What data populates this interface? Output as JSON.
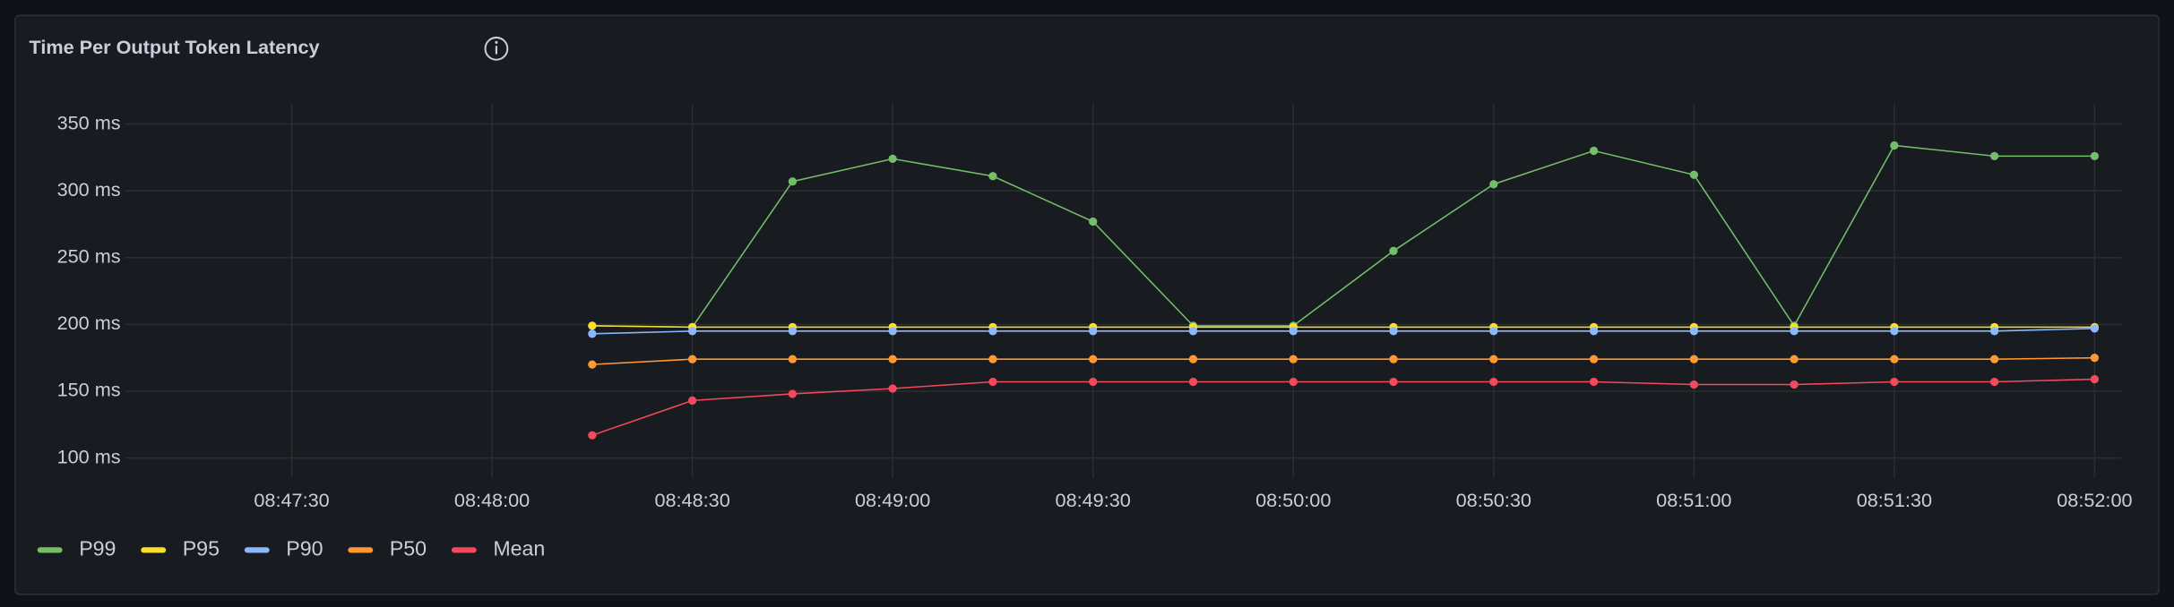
{
  "chart_data": {
    "type": "line",
    "title": "Time Per Output Token Latency",
    "x": [
      "08:48:15",
      "08:48:30",
      "08:48:45",
      "08:49:00",
      "08:49:15",
      "08:49:30",
      "08:49:45",
      "08:50:00",
      "08:50:15",
      "08:50:30",
      "08:50:45",
      "08:51:00",
      "08:51:15",
      "08:51:30",
      "08:51:45",
      "08:52:00"
    ],
    "xlim": [
      "08:47:05",
      "08:52:04"
    ],
    "xticks": [
      "08:47:30",
      "08:48:00",
      "08:48:30",
      "08:49:00",
      "08:49:30",
      "08:50:00",
      "08:50:30",
      "08:51:00",
      "08:51:30",
      "08:52:00"
    ],
    "ylim": [
      85,
      365
    ],
    "yticks": [
      {
        "value": 100,
        "label": "100 ms"
      },
      {
        "value": 150,
        "label": "150 ms"
      },
      {
        "value": 200,
        "label": "200 ms"
      },
      {
        "value": 250,
        "label": "250 ms"
      },
      {
        "value": 300,
        "label": "300 ms"
      },
      {
        "value": 350,
        "label": "350 ms"
      }
    ],
    "grid": true,
    "legend": "bottom-left",
    "series": [
      {
        "name": "P99",
        "color": "#73bf69",
        "values": [
          199,
          198,
          307,
          324,
          311,
          277,
          199,
          199,
          255,
          305,
          330,
          312,
          199,
          334,
          326,
          326
        ]
      },
      {
        "name": "P95",
        "color": "#fade2a",
        "values": [
          199,
          198,
          198,
          198,
          198,
          198,
          198,
          198,
          198,
          198,
          198,
          198,
          198,
          198,
          198,
          198
        ]
      },
      {
        "name": "P90",
        "color": "#8ab8ff",
        "values": [
          193,
          195,
          195,
          195,
          195,
          195,
          195,
          195,
          195,
          195,
          195,
          195,
          195,
          195,
          195,
          197
        ]
      },
      {
        "name": "P50",
        "color": "#ff9830",
        "values": [
          170,
          174,
          174,
          174,
          174,
          174,
          174,
          174,
          174,
          174,
          174,
          174,
          174,
          174,
          174,
          175
        ]
      },
      {
        "name": "Mean",
        "color": "#f2495c",
        "values": [
          117,
          143,
          148,
          152,
          157,
          157,
          157,
          157,
          157,
          157,
          157,
          155,
          155,
          157,
          157,
          159
        ]
      }
    ]
  }
}
